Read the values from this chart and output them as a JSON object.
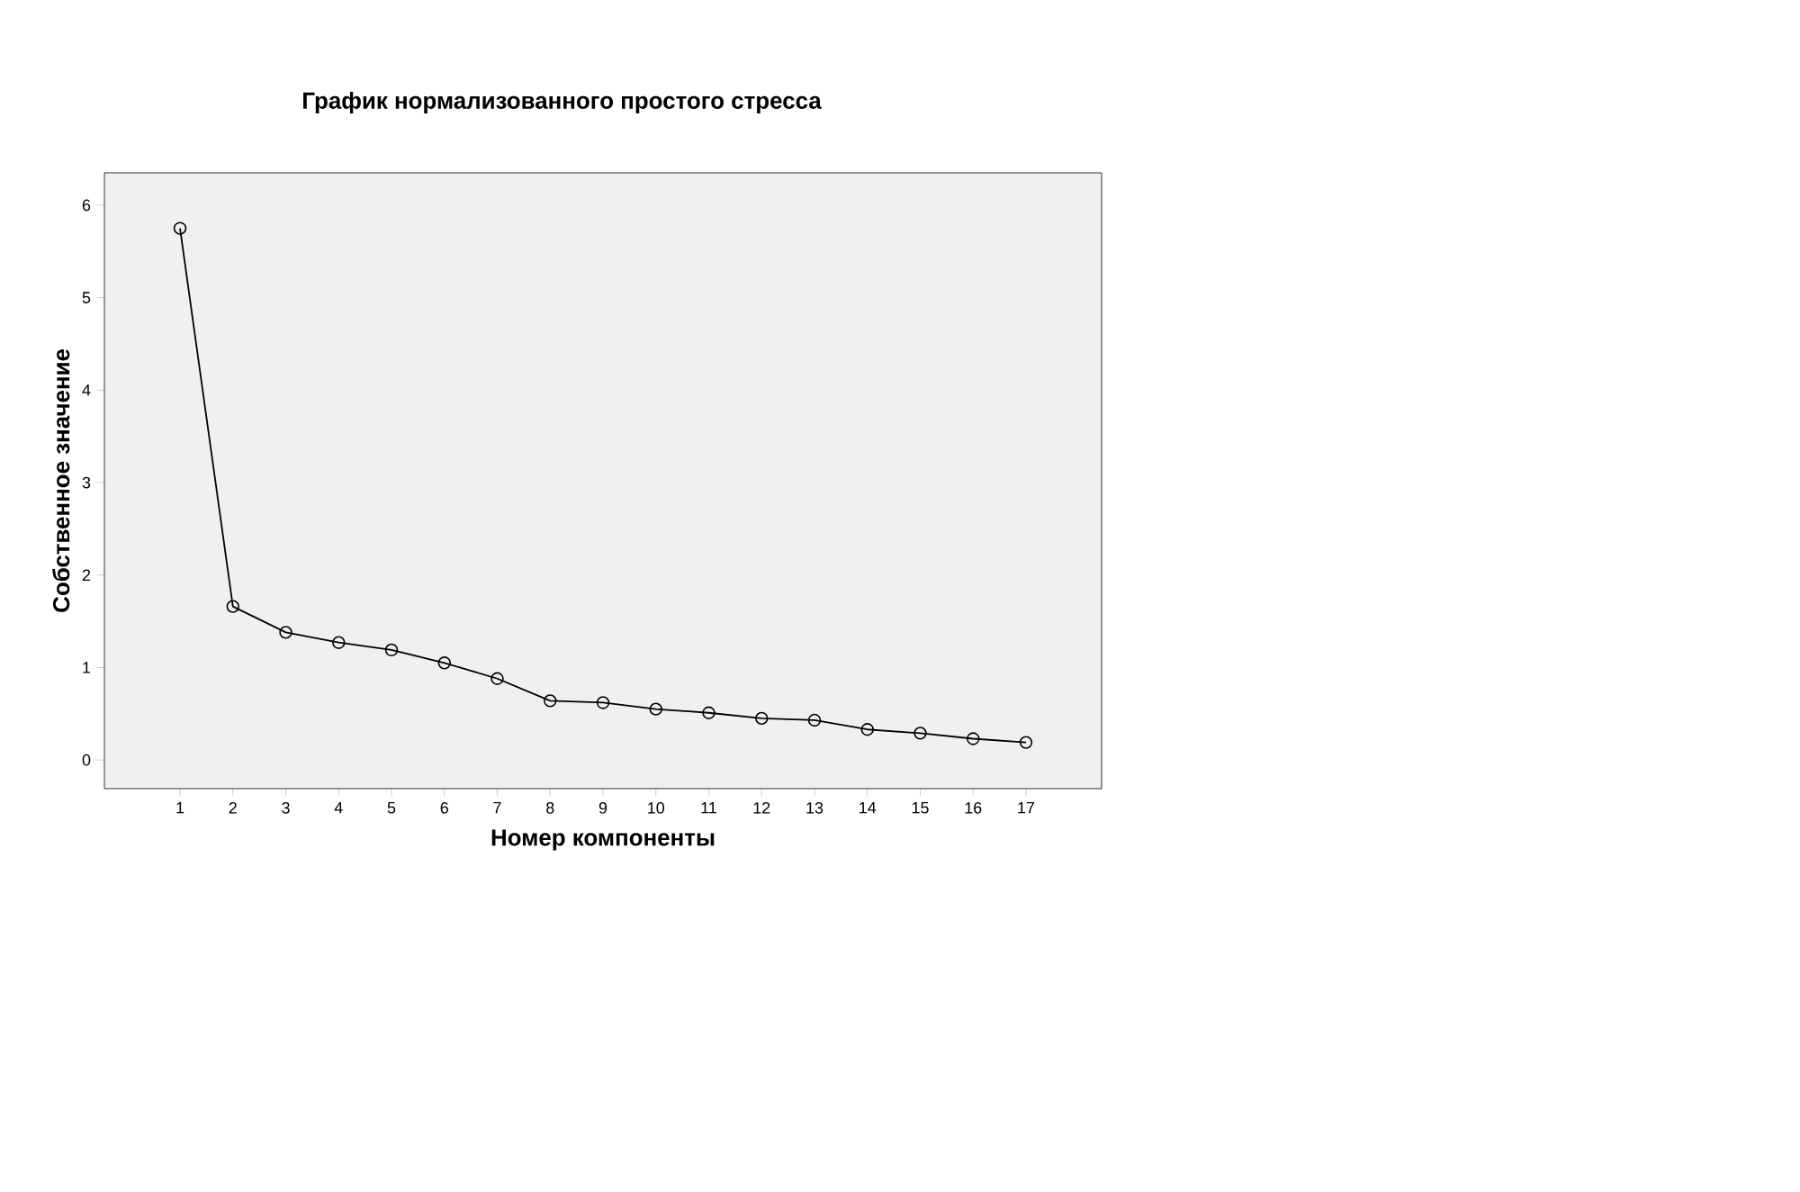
{
  "chart_data": {
    "type": "line",
    "title": "График нормализованного простого стресса",
    "xlabel": "Номер компоненты",
    "ylabel": "Собственное значение",
    "x": [
      1,
      2,
      3,
      4,
      5,
      6,
      7,
      8,
      9,
      10,
      11,
      12,
      13,
      14,
      15,
      16,
      17
    ],
    "series": [
      {
        "color": "#000000",
        "values": [
          5.75,
          1.66,
          1.38,
          1.27,
          1.19,
          1.05,
          0.88,
          0.64,
          0.62,
          0.55,
          0.51,
          0.45,
          0.43,
          0.33,
          0.29,
          0.23,
          0.19
        ]
      }
    ],
    "xlim": [
      -0.43,
      18.43
    ],
    "ylim": [
      -0.31,
      6.35
    ],
    "xticks": [
      1,
      2,
      3,
      4,
      5,
      6,
      7,
      8,
      9,
      10,
      11,
      12,
      13,
      14,
      15,
      16,
      17
    ],
    "yticks": [
      0,
      1,
      2,
      3,
      4,
      5,
      6
    ],
    "marker": "circle",
    "line_style": "solid",
    "grid": false
  }
}
